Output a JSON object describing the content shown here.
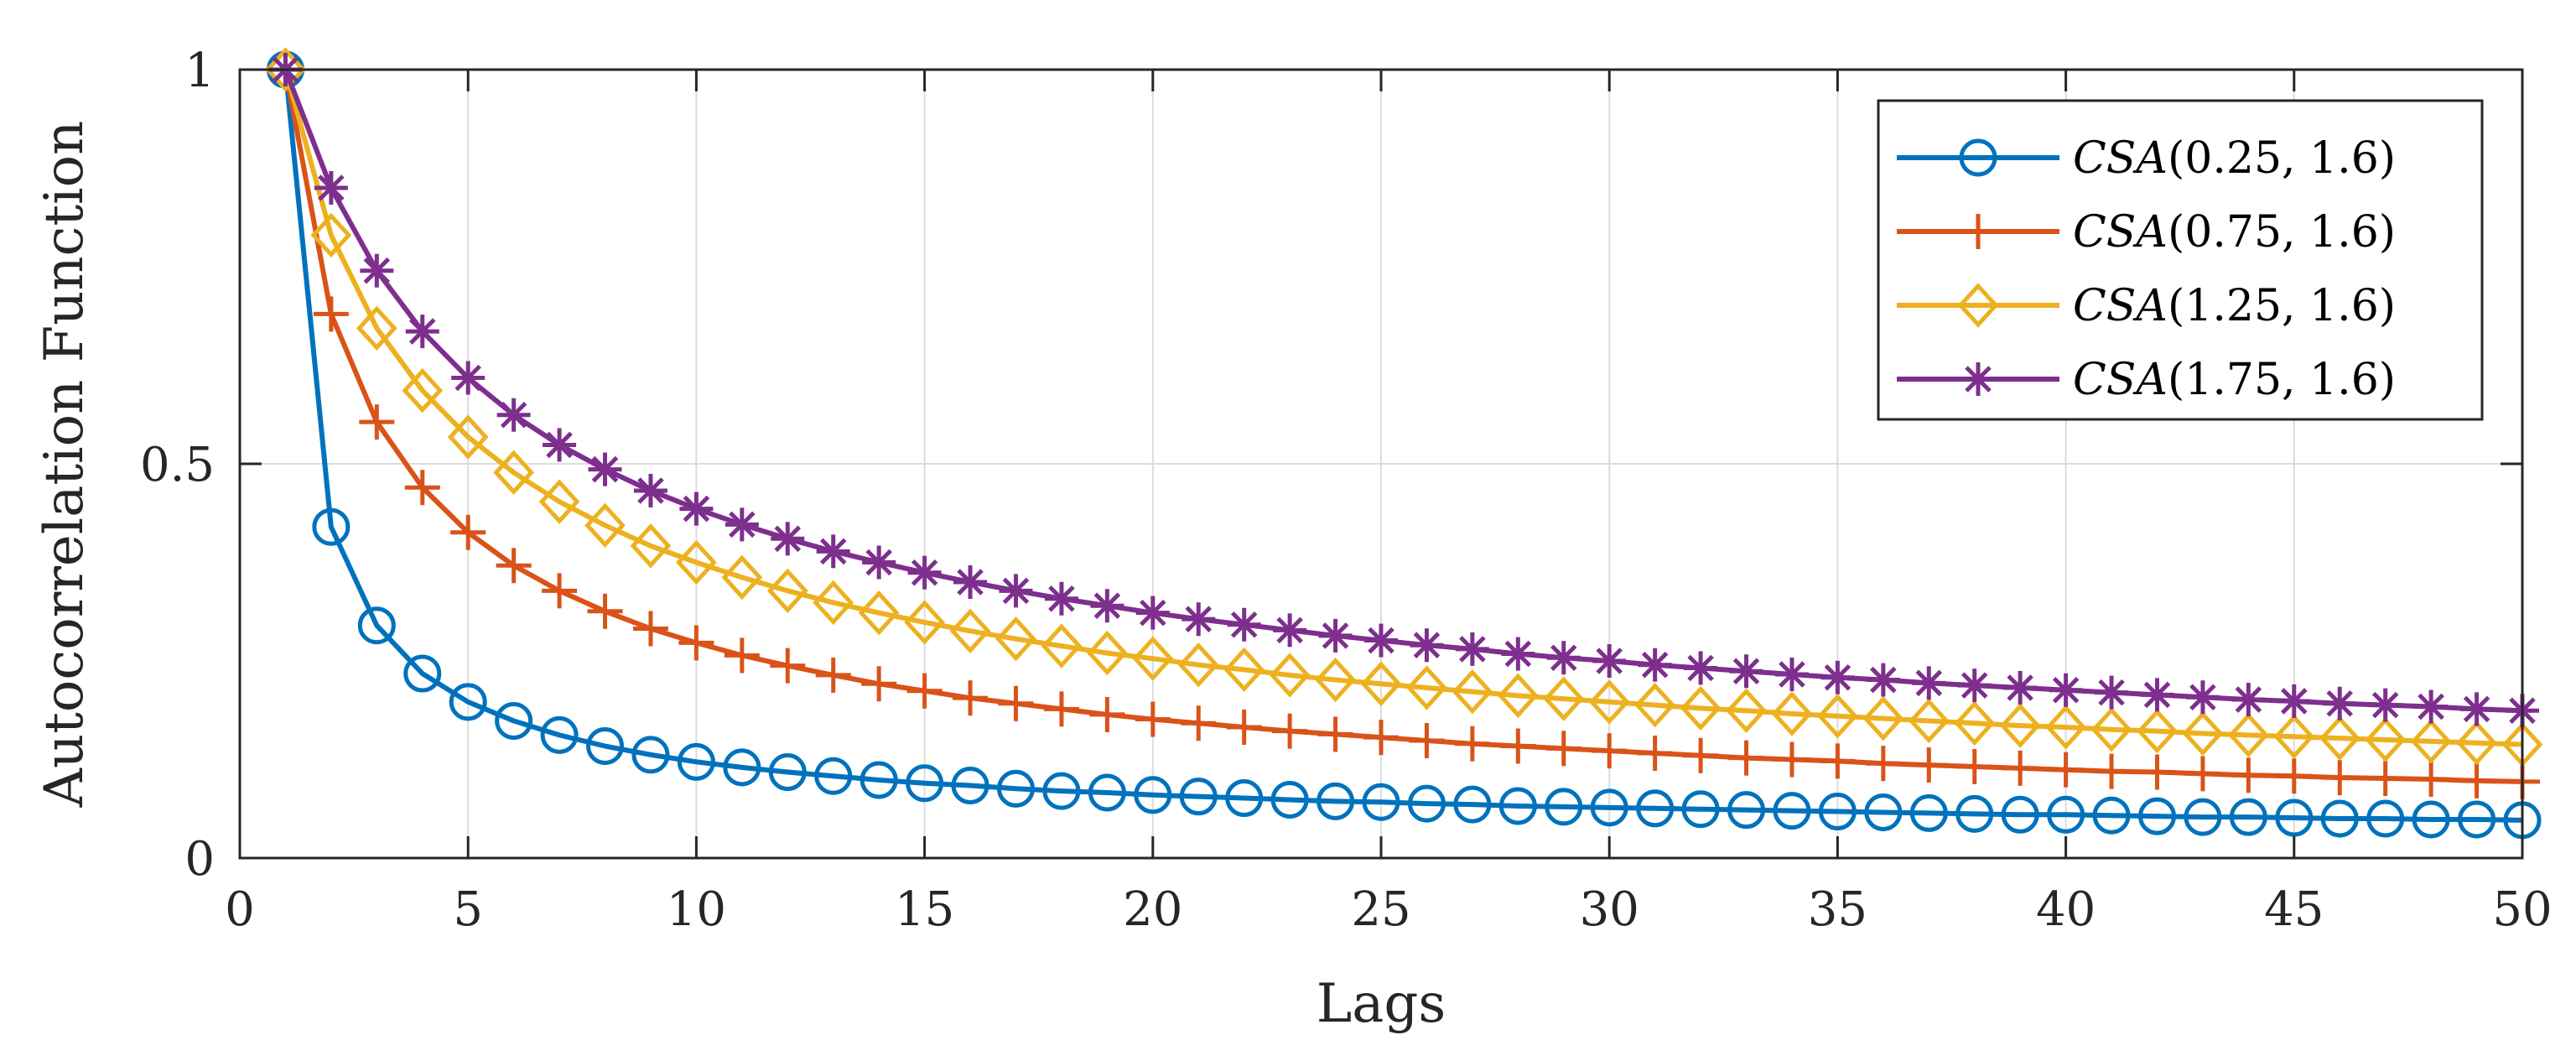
{
  "chart_data": {
    "type": "line",
    "xlabel": "Lags",
    "ylabel": "Autocorrelation Function",
    "xlim": [
      0,
      50
    ],
    "ylim": [
      0,
      1
    ],
    "xticks": [
      "0",
      "5",
      "10",
      "15",
      "20",
      "25",
      "30",
      "35",
      "40",
      "45",
      "50"
    ],
    "yticks": [
      "0",
      "0.5",
      "1"
    ],
    "grid": true,
    "legend_position": "top-right",
    "x": [
      1,
      2,
      3,
      4,
      5,
      6,
      7,
      8,
      9,
      10,
      11,
      12,
      13,
      14,
      15,
      16,
      17,
      18,
      19,
      20,
      21,
      22,
      23,
      24,
      25,
      26,
      27,
      28,
      29,
      30,
      31,
      32,
      33,
      34,
      35,
      36,
      37,
      38,
      39,
      40,
      41,
      42,
      43,
      44,
      45,
      46,
      47,
      48,
      49,
      50
    ],
    "series": [
      {
        "name": "CSA(0.25, 1.6)",
        "label_math": "CSA",
        "label_args": "(0.25, 1.6)",
        "color": "#0072BD",
        "marker": "circle",
        "values": [
          1.0,
          0.42,
          0.295,
          0.234,
          0.198,
          0.174,
          0.156,
          0.142,
          0.131,
          0.122,
          0.115,
          0.109,
          0.104,
          0.099,
          0.095,
          0.092,
          0.088,
          0.085,
          0.083,
          0.08,
          0.078,
          0.076,
          0.074,
          0.072,
          0.071,
          0.069,
          0.068,
          0.066,
          0.065,
          0.064,
          0.063,
          0.062,
          0.061,
          0.06,
          0.059,
          0.058,
          0.057,
          0.056,
          0.055,
          0.055,
          0.054,
          0.053,
          0.052,
          0.052,
          0.051,
          0.05,
          0.05,
          0.049,
          0.049,
          0.048
        ]
      },
      {
        "name": "CSA(0.75, 1.6)",
        "label_math": "CSA",
        "label_args": "(0.75, 1.6)",
        "color": "#D95319",
        "marker": "plus",
        "values": [
          1.0,
          0.69,
          0.553,
          0.47,
          0.413,
          0.371,
          0.339,
          0.313,
          0.291,
          0.273,
          0.257,
          0.244,
          0.232,
          0.221,
          0.212,
          0.203,
          0.196,
          0.189,
          0.182,
          0.176,
          0.171,
          0.166,
          0.161,
          0.157,
          0.153,
          0.149,
          0.145,
          0.142,
          0.139,
          0.136,
          0.133,
          0.13,
          0.127,
          0.125,
          0.123,
          0.12,
          0.118,
          0.116,
          0.114,
          0.112,
          0.11,
          0.109,
          0.107,
          0.105,
          0.104,
          0.102,
          0.101,
          0.1,
          0.098,
          0.097
        ]
      },
      {
        "name": "CSA(1.25, 1.6)",
        "label_math": "CSA",
        "label_args": "(1.25, 1.6)",
        "color": "#EDB120",
        "marker": "diamond",
        "values": [
          1.0,
          0.79,
          0.672,
          0.593,
          0.534,
          0.489,
          0.452,
          0.422,
          0.396,
          0.375,
          0.356,
          0.339,
          0.324,
          0.311,
          0.299,
          0.288,
          0.278,
          0.269,
          0.26,
          0.253,
          0.245,
          0.239,
          0.232,
          0.226,
          0.221,
          0.216,
          0.211,
          0.206,
          0.202,
          0.198,
          0.194,
          0.19,
          0.187,
          0.183,
          0.18,
          0.177,
          0.174,
          0.171,
          0.168,
          0.166,
          0.163,
          0.161,
          0.158,
          0.156,
          0.154,
          0.152,
          0.15,
          0.148,
          0.146,
          0.144
        ]
      },
      {
        "name": "CSA(1.75, 1.6)",
        "label_math": "CSA",
        "label_args": "(1.75, 1.6)",
        "color": "#7E2F8E",
        "marker": "asterisk",
        "values": [
          1.0,
          0.85,
          0.745,
          0.668,
          0.609,
          0.562,
          0.524,
          0.493,
          0.466,
          0.443,
          0.423,
          0.405,
          0.389,
          0.375,
          0.362,
          0.35,
          0.339,
          0.329,
          0.32,
          0.311,
          0.303,
          0.296,
          0.289,
          0.282,
          0.276,
          0.27,
          0.265,
          0.259,
          0.254,
          0.25,
          0.245,
          0.241,
          0.237,
          0.233,
          0.229,
          0.226,
          0.222,
          0.219,
          0.216,
          0.213,
          0.21,
          0.207,
          0.204,
          0.201,
          0.199,
          0.196,
          0.194,
          0.192,
          0.189,
          0.187
        ]
      }
    ]
  }
}
